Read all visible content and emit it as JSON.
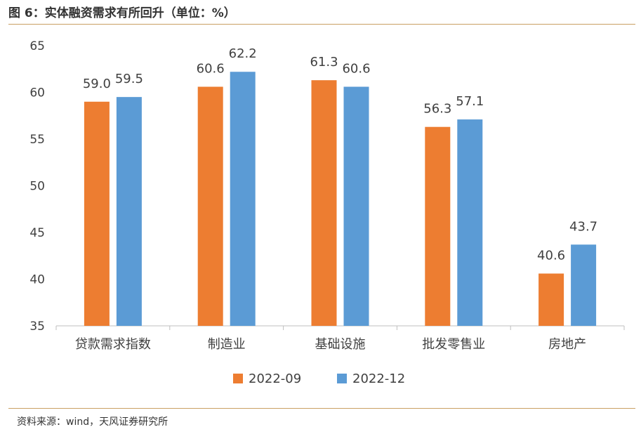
{
  "header": {
    "title": "图 6：实体融资需求有所回升（单位：%）"
  },
  "footer": {
    "source": "资料来源：wind，天风证券研究所"
  },
  "chart_data": {
    "type": "bar",
    "title": "图 6：实体融资需求有所回升（单位：%）",
    "xlabel": "",
    "ylabel": "",
    "ylim": [
      35,
      65
    ],
    "yticks": [
      35,
      40,
      45,
      50,
      55,
      60,
      65
    ],
    "categories": [
      "贷款需求指数",
      "制造业",
      "基础设施",
      "批发零售业",
      "房地产"
    ],
    "series": [
      {
        "name": "2022-09",
        "color": "#ed7d31",
        "values": [
          59.0,
          60.6,
          61.3,
          56.3,
          40.6
        ]
      },
      {
        "name": "2022-12",
        "color": "#5b9bd5",
        "values": [
          59.5,
          62.2,
          60.6,
          57.1,
          43.7
        ]
      }
    ],
    "legend_position": "bottom-center"
  }
}
